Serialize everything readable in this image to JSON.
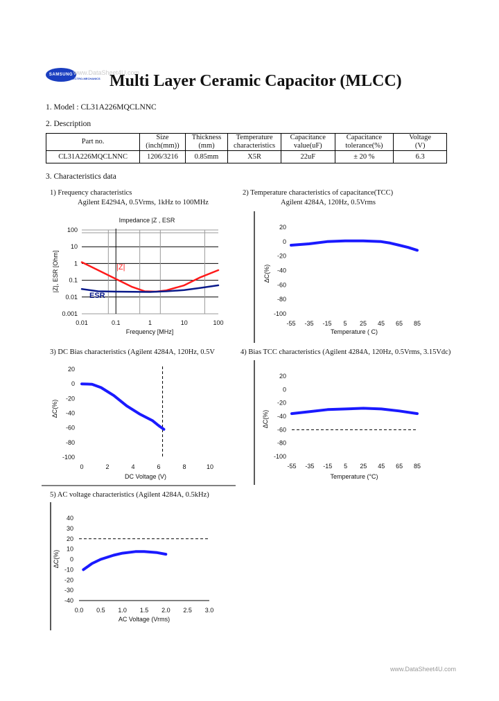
{
  "header": {
    "title": "Multi Layer Ceramic Capacitor (MLCC)",
    "logo_text": "SAMSUNG",
    "logo_sub": "ELECTRO-MECHANICS",
    "watermark": "www.DataSheet4U.com"
  },
  "sections": {
    "model": "1. Model : CL31A226MQCLNNC",
    "description": "2. Description",
    "characteristics": "3. Characteristics data"
  },
  "table": {
    "headers": [
      [
        "Part no.",
        ""
      ],
      [
        "Size",
        "(inch(mm))"
      ],
      [
        "Thickness",
        "(mm)"
      ],
      [
        "Temperature",
        "characteristics"
      ],
      [
        "Capacitance",
        "value(uF)"
      ],
      [
        "Capacitance",
        "tolerance(%)"
      ],
      [
        "Voltage",
        "(V)"
      ]
    ],
    "row": [
      "CL31A226MQCLNNC",
      "1206/3216",
      "0.85mm",
      "X5R",
      "22uF",
      "± 20 %",
      "6.3"
    ]
  },
  "footer": "www.DataSheet4U.com",
  "chart_data": [
    {
      "type": "line",
      "title": "1) Frequency characteristics",
      "subtitle": "Agilent E4294A, 0.5Vrms, 1kHz to 100MHz",
      "plot_title": "Impedance |Z , ESR",
      "xlabel": "Frequency [MHz]",
      "ylabel": "|Z|, ESR [Ohm]",
      "xscale": "log",
      "yscale": "log",
      "xlim": [
        0.01,
        100
      ],
      "ylim": [
        0.001,
        100
      ],
      "grid": true,
      "xticks": [
        "0.01",
        "0.1",
        "1",
        "10",
        "100"
      ],
      "yticks": [
        "0.001",
        "0.01",
        "0.1",
        "1",
        "10",
        "100"
      ],
      "series": [
        {
          "name": "|Z|",
          "color": "#ff1a1a",
          "x": [
            0.01,
            0.03,
            0.1,
            0.3,
            0.7,
            1.5,
            3,
            10,
            30,
            100
          ],
          "y": [
            1.2,
            0.4,
            0.12,
            0.04,
            0.022,
            0.021,
            0.025,
            0.05,
            0.15,
            0.4
          ]
        },
        {
          "name": "ESR",
          "color": "#0a1a8a",
          "x": [
            0.01,
            0.03,
            0.1,
            1,
            3,
            10,
            30,
            100
          ],
          "y": [
            0.03,
            0.022,
            0.021,
            0.02,
            0.022,
            0.026,
            0.035,
            0.05
          ]
        }
      ]
    },
    {
      "type": "line",
      "title": "2) Temperature characteristics of capacitance(TCC)",
      "subtitle": "Agilent 4284A, 120Hz, 0.5Vrms",
      "xlabel": "Temperature ( C)",
      "ylabel": "ΔC(%)",
      "xlim": [
        -55,
        85
      ],
      "ylim": [
        -100,
        20
      ],
      "xticks": [
        "-55",
        "-35",
        "-15",
        "5",
        "25",
        "45",
        "65",
        "85"
      ],
      "yticks": [
        "20",
        "0",
        "-20",
        "-40",
        "-60",
        "-80",
        "-100"
      ],
      "series": [
        {
          "color": "#1a1aff",
          "x": [
            -55,
            -35,
            -15,
            5,
            25,
            45,
            55,
            65,
            75,
            85
          ],
          "y": [
            -5,
            -3,
            0,
            1,
            1,
            0,
            -2,
            -5,
            -8,
            -12
          ]
        }
      ]
    },
    {
      "type": "line",
      "title": "3) DC Bias characteristics (Agilent 4284A, 120Hz, 0.5V",
      "subtitle": "",
      "xlabel": "DC Voltage (V)",
      "ylabel": "ΔC(%)",
      "xlim": [
        0,
        10
      ],
      "ylim": [
        -100,
        20
      ],
      "ref_x": 6.3,
      "xticks": [
        "0",
        "2",
        "4",
        "6",
        "8",
        "10"
      ],
      "yticks": [
        "20",
        "0",
        "-20",
        "-40",
        "-60",
        "-80",
        "-100"
      ],
      "series": [
        {
          "color": "#1a1aff",
          "x": [
            0,
            0.8,
            1.5,
            2.5,
            3.5,
            4.5,
            5.5,
            6,
            6.4
          ],
          "y": [
            0,
            -0.5,
            -5,
            -16,
            -30,
            -41,
            -50,
            -57,
            -62
          ]
        }
      ]
    },
    {
      "type": "line",
      "title": "4) Bias TCC characteristics (Agilent 4284A, 120Hz, 0.5Vrms, 3.15Vdc)",
      "subtitle": "",
      "xlabel": "Temperature (°C)",
      "ylabel": "ΔC(%)",
      "xlim": [
        -55,
        85
      ],
      "ylim": [
        -100,
        20
      ],
      "ref_y": -60,
      "xticks": [
        "-55",
        "-35",
        "-15",
        "5",
        "25",
        "45",
        "65",
        "85"
      ],
      "yticks": [
        "20",
        "0",
        "-20",
        "-40",
        "-60",
        "-80",
        "-100"
      ],
      "series": [
        {
          "color": "#1a1aff",
          "x": [
            -55,
            -35,
            -15,
            5,
            25,
            45,
            65,
            85
          ],
          "y": [
            -36,
            -33,
            -30,
            -29,
            -28,
            -29,
            -32,
            -36
          ]
        }
      ]
    },
    {
      "type": "line",
      "title": "5) AC voltage characteristics (Agilent 4284A, 0.5kHz)",
      "subtitle": "",
      "xlabel": "AC Voltage (Vrms)",
      "ylabel": "ΔC(%)",
      "xlim": [
        0,
        3
      ],
      "ylim": [
        -40,
        40
      ],
      "ref_y": 20,
      "xticks": [
        "0.0",
        "0.5",
        "1.0",
        "1.5",
        "2.0",
        "2.5",
        "3.0"
      ],
      "yticks": [
        "40",
        "30",
        "20",
        "10",
        "0",
        "-10",
        "-20",
        "-30",
        "-40"
      ],
      "series": [
        {
          "color": "#1a1aff",
          "x": [
            0.1,
            0.3,
            0.5,
            0.8,
            1.0,
            1.3,
            1.5,
            1.8,
            2.0
          ],
          "y": [
            -10,
            -4,
            0,
            4,
            6,
            7.5,
            7.5,
            6.5,
            5
          ]
        }
      ]
    }
  ]
}
